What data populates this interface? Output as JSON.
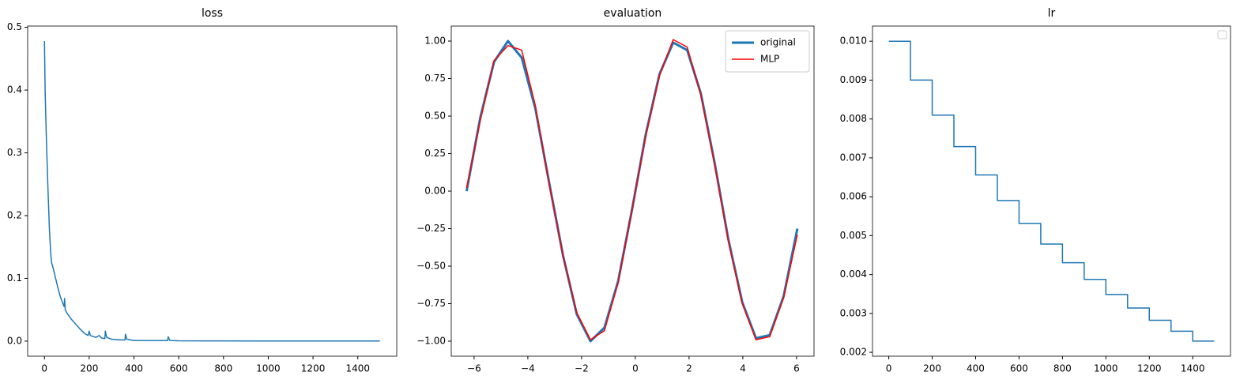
{
  "chart_data": [
    {
      "type": "line",
      "title": "loss",
      "x": [
        0,
        3,
        8,
        15,
        22,
        28,
        32,
        40,
        50,
        60,
        70,
        80,
        88,
        90,
        93,
        100,
        120,
        140,
        160,
        180,
        195,
        200,
        205,
        230,
        245,
        255,
        270,
        272,
        278,
        300,
        340,
        360,
        362,
        368,
        400,
        500,
        550,
        553,
        560,
        600,
        1000,
        1499
      ],
      "series": [
        {
          "color": "#1f77b4",
          "linewidth": 1.5,
          "values": [
            0.478,
            0.4,
            0.33,
            0.25,
            0.18,
            0.14,
            0.125,
            0.115,
            0.1,
            0.085,
            0.072,
            0.062,
            0.055,
            0.068,
            0.05,
            0.045,
            0.035,
            0.027,
            0.019,
            0.012,
            0.009,
            0.016,
            0.009,
            0.006,
            0.009,
            0.005,
            0.004,
            0.016,
            0.006,
            0.003,
            0.002,
            0.002,
            0.011,
            0.003,
            0.001,
            0.001,
            0.0008,
            0.007,
            0.001,
            0.0005,
            0.0003,
            0.0002
          ]
        }
      ],
      "xlim": [
        -75,
        1574
      ],
      "xticks": [
        0,
        200,
        400,
        600,
        800,
        1000,
        1200,
        1400
      ],
      "ylim": [
        -0.024,
        0.502
      ],
      "yticks": [
        {
          "value": 0,
          "label": "0.0"
        },
        0.1,
        0.2,
        0.3,
        0.4,
        0.5
      ]
    },
    {
      "type": "line",
      "title": "evaluation",
      "x": [
        -6.28,
        -5.77,
        -5.26,
        -4.74,
        -4.23,
        -3.72,
        -3.21,
        -2.69,
        -2.18,
        -1.67,
        -1.15,
        -0.64,
        -0.13,
        0.39,
        0.9,
        1.41,
        1.93,
        2.44,
        2.95,
        3.46,
        3.98,
        4.49,
        5.0,
        5.52,
        6.03
      ],
      "series": [
        {
          "name": "original",
          "color": "#1f77b4",
          "linewidth": 3,
          "values": [
            0.0,
            0.49,
            0.86,
            1.0,
            0.89,
            0.55,
            0.06,
            -0.43,
            -0.82,
            -1.0,
            -0.91,
            -0.6,
            -0.13,
            0.38,
            0.78,
            0.99,
            0.94,
            0.65,
            0.19,
            -0.32,
            -0.74,
            -0.98,
            -0.96,
            -0.7,
            -0.25
          ]
        },
        {
          "name": "MLP",
          "color": "#ff0000",
          "linewidth": 1.5,
          "values": [
            0.02,
            0.47,
            0.87,
            0.97,
            0.94,
            0.57,
            0.05,
            -0.43,
            -0.81,
            -0.99,
            -0.93,
            -0.61,
            -0.13,
            0.37,
            0.77,
            1.01,
            0.96,
            0.64,
            0.18,
            -0.33,
            -0.75,
            -0.99,
            -0.97,
            -0.71,
            -0.29
          ]
        }
      ],
      "legend": "upper right",
      "xlim": [
        -6.85,
        6.65
      ],
      "xticks": [
        {
          "value": -6,
          "label": "−6"
        },
        {
          "value": -4,
          "label": "−4"
        },
        {
          "value": -2,
          "label": "−2"
        },
        0,
        2,
        4,
        6
      ],
      "ylim": [
        -1.1,
        1.1
      ],
      "yticks": [
        {
          "value": -1,
          "label": "−1.00"
        },
        {
          "value": -0.75,
          "label": "−0.75"
        },
        {
          "value": -0.5,
          "label": "−0.50"
        },
        {
          "value": -0.25,
          "label": "−0.25"
        },
        {
          "value": 0,
          "label": "0.00"
        },
        {
          "value": 0.25,
          "label": "0.25"
        },
        {
          "value": 0.5,
          "label": "0.50"
        },
        {
          "value": 0.75,
          "label": "0.75"
        },
        {
          "value": 1,
          "label": "1.00"
        }
      ]
    },
    {
      "type": "line",
      "title": "lr",
      "drawstyle": "steps-post",
      "legend": "upper right",
      "x": [
        0,
        100,
        200,
        300,
        400,
        500,
        600,
        700,
        800,
        900,
        1000,
        1100,
        1200,
        1300,
        1400,
        1499
      ],
      "series": [
        {
          "color": "#1f77b4",
          "linewidth": 1.5,
          "values": [
            0.01,
            0.009,
            0.0081,
            0.00729,
            0.006561,
            0.005905,
            0.005314,
            0.004783,
            0.004305,
            0.003874,
            0.003487,
            0.003138,
            0.002824,
            0.002542,
            0.002288,
            0.002288
          ]
        }
      ],
      "xlim": [
        -75,
        1574
      ],
      "xticks": [
        0,
        200,
        400,
        600,
        800,
        1000,
        1200,
        1400
      ],
      "ylim": [
        0.0019,
        0.01039
      ],
      "yticks": [
        0.002,
        0.003,
        0.004,
        0.005,
        0.006,
        0.007,
        0.008,
        0.009,
        {
          "value": 0.01,
          "label": "0.010"
        }
      ]
    }
  ]
}
